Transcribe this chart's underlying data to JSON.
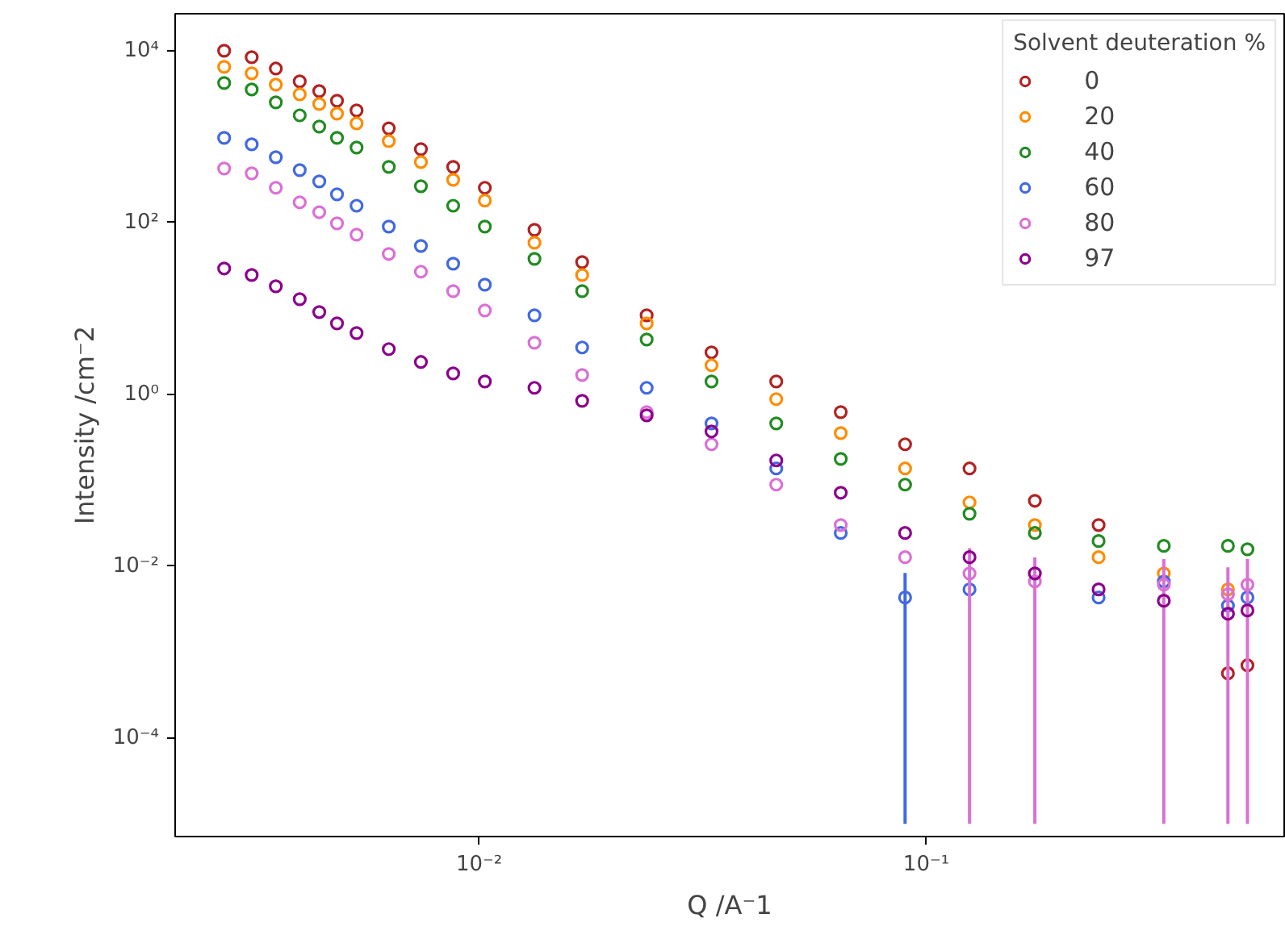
{
  "chart_data": {
    "type": "scatter",
    "xlabel": "Q /A⁻1",
    "ylabel": "Intensity /cm⁻2",
    "legend_title": "Solvent deuteration %",
    "legend": "top right",
    "grid": false,
    "marker": "circle",
    "log": "xy",
    "x": [
      0.00269,
      0.0031,
      0.00351,
      0.00397,
      0.00439,
      0.00481,
      0.00532,
      0.00628,
      0.00741,
      0.00875,
      0.0103,
      0.0133,
      0.017,
      0.0237,
      0.0331,
      0.0462,
      0.0644,
      0.0897,
      0.125,
      0.175,
      0.243,
      0.34,
      0.473,
      0.523
    ],
    "xlim": [
      0.00209,
      0.632
    ],
    "xticks": [
      {
        "value": 0.01,
        "label": "10⁻²"
      },
      {
        "value": 0.1,
        "label": "10⁻¹"
      }
    ],
    "ylim": [
      7.1e-06,
      27000
    ],
    "yticks": [
      {
        "value": 0.0001,
        "label": "10⁻⁴"
      },
      {
        "value": 0.01,
        "label": "10⁻²"
      },
      {
        "value": 1,
        "label": "10⁰"
      },
      {
        "value": 100,
        "label": "10²"
      },
      {
        "value": 10000,
        "label": "10⁴"
      }
    ],
    "series": [
      {
        "name": "0",
        "color": "#b22222",
        "values": [
          10000,
          8410,
          6210,
          4400,
          3390,
          2620,
          2020,
          1250,
          715,
          445,
          254,
          82.4,
          34.7,
          8.32,
          3.08,
          1.41,
          0.621,
          0.262,
          0.137,
          0.0576,
          0.0301,
          null,
          0.000564,
          0.0007
        ]
      },
      {
        "name": "20",
        "color": "#ff8c00",
        "values": [
          6490,
          5460,
          4030,
          3110,
          2400,
          1850,
          1430,
          888,
          506,
          315,
          180,
          58.2,
          24.5,
          6.7,
          2.18,
          0.879,
          0.354,
          0.137,
          0.0552,
          0.0301,
          0.0127,
          0.00822,
          0.00535,
          null
        ]
      },
      {
        "name": "40",
        "color": "#228b22",
        "values": [
          4210,
          3540,
          2510,
          1770,
          1310,
          968,
          747,
          445,
          265,
          157,
          89.8,
          37.8,
          15.9,
          4.35,
          1.41,
          0.459,
          0.177,
          0.0888,
          0.0407,
          0.0243,
          0.0196,
          0.0172,
          0.0172,
          0.0157
        ]
      },
      {
        "name": "60",
        "color": "#4169e1",
        "values": [
          968,
          814,
          576,
          408,
          301,
          213,
          157,
          89.8,
          53.4,
          33.2,
          18.9,
          8.32,
          3.51,
          1.19,
          0.459,
          0.137,
          0.0243,
          0.00431,
          0.00535,
          null,
          0.00431,
          0.00663,
          0.00346,
          0.00431
        ],
        "errors": [
          null,
          null,
          null,
          null,
          null,
          null,
          null,
          null,
          null,
          null,
          null,
          null,
          null,
          null,
          null,
          null,
          null,
          [
            1e-05,
            0.00831
          ],
          null,
          null,
          null,
          null,
          null,
          null
        ]
      },
      {
        "name": "80",
        "color": "#da70d6",
        "values": [
          426,
          374,
          254,
          172,
          132,
          97.9,
          72.3,
          43.1,
          26.8,
          15.9,
          9.48,
          3.99,
          1.68,
          0.621,
          0.262,
          0.0888,
          0.0301,
          0.0127,
          0.00822,
          0.00663,
          null,
          0.00608,
          0.00469,
          0.00608
        ],
        "errors": [
          null,
          null,
          null,
          null,
          null,
          null,
          null,
          null,
          null,
          null,
          null,
          null,
          null,
          null,
          null,
          null,
          null,
          null,
          [
            1e-05,
            0.0162
          ],
          [
            1e-05,
            0.0126
          ],
          null,
          [
            1e-05,
            0.0121
          ],
          [
            1e-05,
            0.0097
          ],
          [
            1e-05,
            0.0121
          ]
        ]
      },
      {
        "name": "97",
        "color": "#8b008b",
        "values": [
          29.2,
          24.5,
          18.1,
          12.8,
          9.08,
          6.7,
          5.17,
          3.36,
          2.38,
          1.75,
          1.41,
          1.19,
          0.841,
          0.57,
          0.37,
          0.17,
          0.0715,
          0.0243,
          0.0127,
          0.00822,
          0.00535,
          0.00395,
          0.00279,
          0.00305
        ]
      }
    ]
  }
}
